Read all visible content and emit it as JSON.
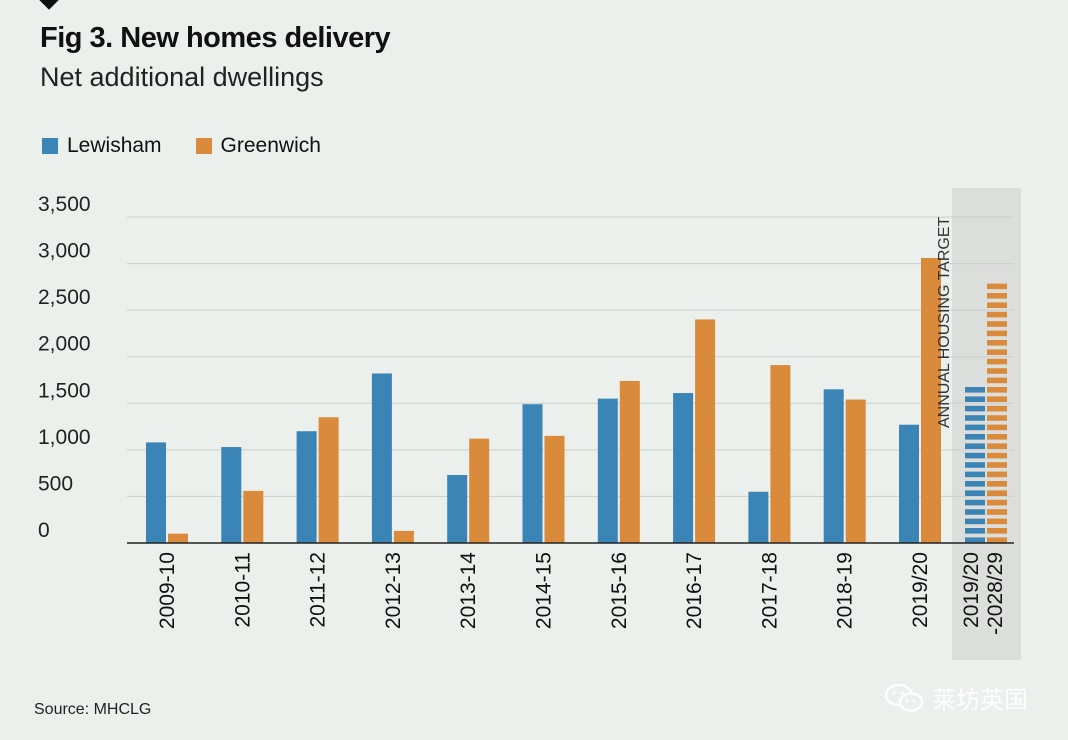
{
  "header": {
    "title": "Fig 3. New homes delivery",
    "subtitle": "Net additional dwellings"
  },
  "source": "Source: MHCLG",
  "watermark": "莱坊英国",
  "colors": {
    "lewisham": "#3a84b6",
    "greenwich": "#d98a3a",
    "grid": "#c9cfcb",
    "target_band": "#dcdedc"
  },
  "chart_data": {
    "type": "bar",
    "title": "Fig 3. New homes delivery",
    "subtitle": "Net additional dwellings",
    "xlabel": "",
    "ylabel": "",
    "ylim": [
      0,
      3500
    ],
    "yticks": [
      0,
      500,
      1000,
      1500,
      2000,
      2500,
      3000,
      3500
    ],
    "ytick_labels": [
      "0",
      "500",
      "1,000",
      "1,500",
      "2,000",
      "2,500",
      "3,000",
      "3,500"
    ],
    "categories": [
      "2009-10",
      "2010-11",
      "2011-12",
      "2012-13",
      "2013-14",
      "2014-15",
      "2015-16",
      "2016-17",
      "2017-18",
      "2018-19",
      "2019/20"
    ],
    "series": [
      {
        "name": "Lewisham",
        "values": [
          1080,
          1030,
          1200,
          1820,
          730,
          1490,
          1550,
          1610,
          550,
          1650,
          1270
        ]
      },
      {
        "name": "Greenwich",
        "values": [
          100,
          560,
          1350,
          130,
          1120,
          1150,
          1740,
          2400,
          1910,
          1540,
          3060
        ]
      }
    ],
    "target": {
      "category_label_line1": "2019/20",
      "category_label_line2": "-2028/29",
      "annotation": "ANNUAL HOUSING TARGET",
      "values": [
        {
          "name": "Lewisham",
          "value": 1670
        },
        {
          "name": "Greenwich",
          "value": 2860
        }
      ]
    },
    "legend": [
      "Lewisham",
      "Greenwich"
    ],
    "legend_position": "top-left",
    "grid": true
  }
}
